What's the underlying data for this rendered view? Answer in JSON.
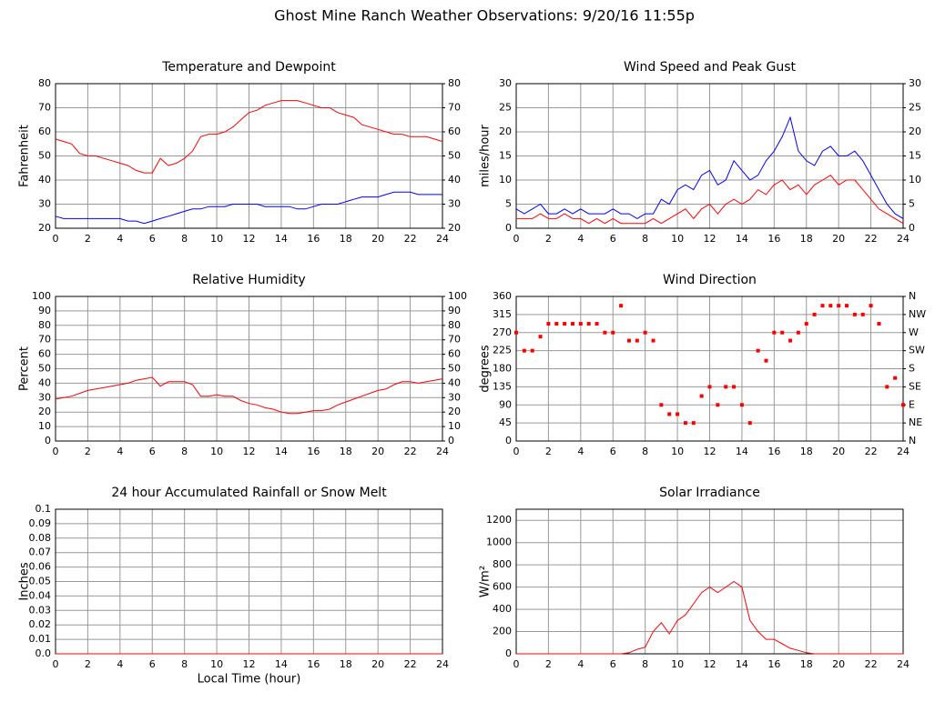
{
  "title": "Ghost Mine Ranch Weather Observations: 9/20/16 11:55p",
  "chart_data": [
    {
      "type": "line",
      "title": "Temperature and Dewpoint",
      "ylabel": "Fahrenheit",
      "x": [
        0,
        0.5,
        1,
        1.5,
        2,
        2.5,
        3,
        3.5,
        4,
        4.5,
        5,
        5.5,
        6,
        6.5,
        7,
        7.5,
        8,
        8.5,
        9,
        9.5,
        10,
        10.5,
        11,
        11.5,
        12,
        12.5,
        13,
        13.5,
        14,
        14.5,
        15,
        15.5,
        16,
        16.5,
        17,
        17.5,
        18,
        18.5,
        19,
        19.5,
        20,
        20.5,
        21,
        21.5,
        22,
        22.5,
        23,
        23.5,
        24
      ],
      "series": [
        {
          "color": "#ff0000",
          "values": [
            57,
            56,
            55,
            51,
            50,
            50,
            49,
            48,
            47,
            46,
            44,
            43,
            43,
            49,
            46,
            47,
            49,
            52,
            58,
            59,
            59,
            60,
            62,
            65,
            68,
            69,
            71,
            72,
            73,
            73,
            73,
            72,
            71,
            70,
            70,
            68,
            67,
            66,
            63,
            62,
            61,
            60,
            59,
            59,
            58,
            58,
            58,
            57,
            56
          ]
        },
        {
          "color": "#0000ff",
          "values": [
            25,
            24,
            24,
            24,
            24,
            24,
            24,
            24,
            24,
            23,
            23,
            22,
            23,
            24,
            25,
            26,
            27,
            28,
            28,
            29,
            29,
            29,
            30,
            30,
            30,
            30,
            29,
            29,
            29,
            29,
            28,
            28,
            29,
            30,
            30,
            30,
            31,
            32,
            33,
            33,
            33,
            34,
            35,
            35,
            35,
            34,
            34,
            34,
            34
          ]
        }
      ],
      "xlim": [
        0,
        24
      ],
      "xticks": [
        0,
        2,
        4,
        6,
        8,
        10,
        12,
        14,
        16,
        18,
        20,
        22,
        24
      ],
      "ylim": [
        20,
        80
      ],
      "yticks": [
        20,
        30,
        40,
        50,
        60,
        70,
        80
      ],
      "y2lim": [
        20,
        80
      ],
      "y2ticks": [
        20,
        30,
        40,
        50,
        60,
        70,
        80
      ],
      "grid": true
    },
    {
      "type": "line",
      "title": "Wind Speed and Peak Gust",
      "ylabel": "miles/hour",
      "x": [
        0,
        0.5,
        1,
        1.5,
        2,
        2.5,
        3,
        3.5,
        4,
        4.5,
        5,
        5.5,
        6,
        6.5,
        7,
        7.5,
        8,
        8.5,
        9,
        9.5,
        10,
        10.5,
        11,
        11.5,
        12,
        12.5,
        13,
        13.5,
        14,
        14.5,
        15,
        15.5,
        16,
        16.5,
        17,
        17.5,
        18,
        18.5,
        19,
        19.5,
        20,
        20.5,
        21,
        21.5,
        22,
        22.5,
        23,
        23.5,
        24
      ],
      "series": [
        {
          "color": "#0000ff",
          "values": [
            4,
            3,
            4,
            5,
            3,
            3,
            4,
            3,
            4,
            3,
            3,
            3,
            4,
            3,
            3,
            2,
            3,
            3,
            6,
            5,
            8,
            9,
            8,
            11,
            12,
            9,
            10,
            14,
            12,
            10,
            11,
            14,
            16,
            19,
            23,
            16,
            14,
            13,
            16,
            17,
            15,
            15,
            16,
            14,
            11,
            8,
            5,
            3,
            2
          ]
        },
        {
          "color": "#ff0000",
          "values": [
            2,
            2,
            2,
            3,
            2,
            2,
            3,
            2,
            2,
            1,
            2,
            1,
            2,
            1,
            1,
            1,
            1,
            2,
            1,
            2,
            3,
            4,
            2,
            4,
            5,
            3,
            5,
            6,
            5,
            6,
            8,
            7,
            9,
            10,
            8,
            9,
            7,
            9,
            10,
            11,
            9,
            10,
            10,
            8,
            6,
            4,
            3,
            2,
            1
          ]
        }
      ],
      "xlim": [
        0,
        24
      ],
      "xticks": [
        0,
        2,
        4,
        6,
        8,
        10,
        12,
        14,
        16,
        18,
        20,
        22,
        24
      ],
      "ylim": [
        0,
        30
      ],
      "yticks": [
        0,
        5,
        10,
        15,
        20,
        25,
        30
      ],
      "y2lim": [
        0,
        30
      ],
      "y2ticks": [
        0,
        5,
        10,
        15,
        20,
        25,
        30
      ],
      "grid": true
    },
    {
      "type": "line",
      "title": "Relative Humidity",
      "ylabel": "Percent",
      "x": [
        0,
        0.5,
        1,
        1.5,
        2,
        2.5,
        3,
        3.5,
        4,
        4.5,
        5,
        5.5,
        6,
        6.5,
        7,
        7.5,
        8,
        8.5,
        9,
        9.5,
        10,
        10.5,
        11,
        11.5,
        12,
        12.5,
        13,
        13.5,
        14,
        14.5,
        15,
        15.5,
        16,
        16.5,
        17,
        17.5,
        18,
        18.5,
        19,
        19.5,
        20,
        20.5,
        21,
        21.5,
        22,
        22.5,
        23,
        23.5,
        24
      ],
      "series": [
        {
          "color": "#ff0000",
          "values": [
            29,
            30,
            31,
            33,
            35,
            36,
            37,
            38,
            39,
            40,
            42,
            43,
            44,
            38,
            41,
            41,
            41,
            39,
            31,
            31,
            32,
            31,
            31,
            28,
            26,
            25,
            23,
            22,
            20,
            19,
            19,
            20,
            21,
            21,
            22,
            25,
            27,
            29,
            31,
            33,
            35,
            36,
            39,
            41,
            41,
            40,
            41,
            42,
            43
          ]
        }
      ],
      "xlim": [
        0,
        24
      ],
      "xticks": [
        0,
        2,
        4,
        6,
        8,
        10,
        12,
        14,
        16,
        18,
        20,
        22,
        24
      ],
      "ylim": [
        0,
        100
      ],
      "yticks": [
        0,
        10,
        20,
        30,
        40,
        50,
        60,
        70,
        80,
        90,
        100
      ],
      "y2lim": [
        0,
        100
      ],
      "y2ticks": [
        0,
        10,
        20,
        30,
        40,
        50,
        60,
        70,
        80,
        90,
        100
      ],
      "grid": true
    },
    {
      "type": "scatter",
      "title": "Wind Direction",
      "ylabel": "degrees",
      "x": [
        0,
        0.5,
        1,
        1.5,
        2,
        2.5,
        3,
        3.5,
        4,
        4.5,
        5,
        5.5,
        6,
        6.5,
        7,
        7.5,
        8,
        8.5,
        9,
        9.5,
        10,
        10.5,
        11,
        11.5,
        12,
        12.5,
        13,
        13.5,
        14,
        14.5,
        15,
        15.5,
        16,
        16.5,
        17,
        17.5,
        18,
        18.5,
        19,
        19.5,
        20,
        20.5,
        21,
        21.5,
        22,
        22.5,
        23,
        23.5,
        24
      ],
      "series": [
        {
          "color": "#ff0000",
          "values": [
            270,
            225,
            225,
            260,
            292,
            292,
            292,
            292,
            292,
            292,
            292,
            270,
            270,
            337,
            250,
            250,
            270,
            250,
            90,
            67,
            67,
            45,
            45,
            112,
            135,
            90,
            135,
            135,
            90,
            45,
            225,
            200,
            270,
            270,
            250,
            270,
            292,
            315,
            337,
            337,
            337,
            337,
            315,
            315,
            337,
            292,
            135,
            157,
            90
          ]
        }
      ],
      "xlim": [
        0,
        24
      ],
      "xticks": [
        0,
        2,
        4,
        6,
        8,
        10,
        12,
        14,
        16,
        18,
        20,
        22,
        24
      ],
      "ylim": [
        0,
        360
      ],
      "yticks": [
        0,
        45,
        90,
        135,
        180,
        225,
        270,
        315,
        360
      ],
      "y2lim": [
        0,
        360
      ],
      "y2ticks": [
        {
          "value": 0,
          "label": "N"
        },
        {
          "value": 45,
          "label": "NE"
        },
        {
          "value": 90,
          "label": "E"
        },
        {
          "value": 135,
          "label": "SE"
        },
        {
          "value": 180,
          "label": "S"
        },
        {
          "value": 225,
          "label": "SW"
        },
        {
          "value": 270,
          "label": "W"
        },
        {
          "value": 315,
          "label": "NW"
        },
        {
          "value": 360,
          "label": "N"
        }
      ],
      "grid": true
    },
    {
      "type": "line",
      "title": "24 hour Accumulated Rainfall or Snow Melt",
      "ylabel": "Inches",
      "xlabel": "Local Time (hour)",
      "x": [
        0,
        0.5,
        1,
        1.5,
        2,
        2.5,
        3,
        3.5,
        4,
        4.5,
        5,
        5.5,
        6,
        6.5,
        7,
        7.5,
        8,
        8.5,
        9,
        9.5,
        10,
        10.5,
        11,
        11.5,
        12,
        12.5,
        13,
        13.5,
        14,
        14.5,
        15,
        15.5,
        16,
        16.5,
        17,
        17.5,
        18,
        18.5,
        19,
        19.5,
        20,
        20.5,
        21,
        21.5,
        22,
        22.5,
        23,
        23.5,
        24
      ],
      "series": [
        {
          "color": "#ff0000",
          "values": [
            0,
            0,
            0,
            0,
            0,
            0,
            0,
            0,
            0,
            0,
            0,
            0,
            0,
            0,
            0,
            0,
            0,
            0,
            0,
            0,
            0,
            0,
            0,
            0,
            0,
            0,
            0,
            0,
            0,
            0,
            0,
            0,
            0,
            0,
            0,
            0,
            0,
            0,
            0,
            0,
            0,
            0,
            0,
            0,
            0,
            0,
            0,
            0,
            0
          ]
        }
      ],
      "xlim": [
        0,
        24
      ],
      "xticks": [
        0,
        2,
        4,
        6,
        8,
        10,
        12,
        14,
        16,
        18,
        20,
        22,
        24
      ],
      "ylim": [
        0,
        0.1
      ],
      "yticks": [
        {
          "value": 0,
          "label": "0.0"
        },
        0.01,
        0.02,
        0.03,
        0.04,
        0.05,
        0.06,
        0.07,
        0.08,
        0.09,
        0.1
      ],
      "grid": true
    },
    {
      "type": "line",
      "title": "Solar Irradiance",
      "ylabel": "W/m²",
      "x": [
        0,
        0.5,
        1,
        1.5,
        2,
        2.5,
        3,
        3.5,
        4,
        4.5,
        5,
        5.5,
        6,
        6.5,
        7,
        7.5,
        8,
        8.5,
        9,
        9.5,
        10,
        10.5,
        11,
        11.5,
        12,
        12.5,
        13,
        13.5,
        14,
        14.5,
        15,
        15.5,
        16,
        16.5,
        17,
        17.5,
        18,
        18.5,
        19,
        19.5,
        20,
        20.5,
        21,
        21.5,
        22,
        22.5,
        23,
        23.5,
        24
      ],
      "series": [
        {
          "color": "#ff0000",
          "values": [
            0,
            0,
            0,
            0,
            0,
            0,
            0,
            0,
            0,
            0,
            0,
            0,
            0,
            0,
            10,
            40,
            60,
            200,
            280,
            180,
            300,
            350,
            450,
            550,
            600,
            550,
            600,
            650,
            600,
            300,
            200,
            130,
            130,
            90,
            50,
            30,
            10,
            0,
            0,
            0,
            0,
            0,
            0,
            0,
            0,
            0,
            0,
            0,
            0
          ]
        }
      ],
      "xlim": [
        0,
        24
      ],
      "xticks": [
        0,
        2,
        4,
        6,
        8,
        10,
        12,
        14,
        16,
        18,
        20,
        22,
        24
      ],
      "ylim": [
        0,
        1300
      ],
      "yticks": [
        0,
        200,
        400,
        600,
        800,
        1000,
        1200
      ],
      "grid": true
    }
  ]
}
